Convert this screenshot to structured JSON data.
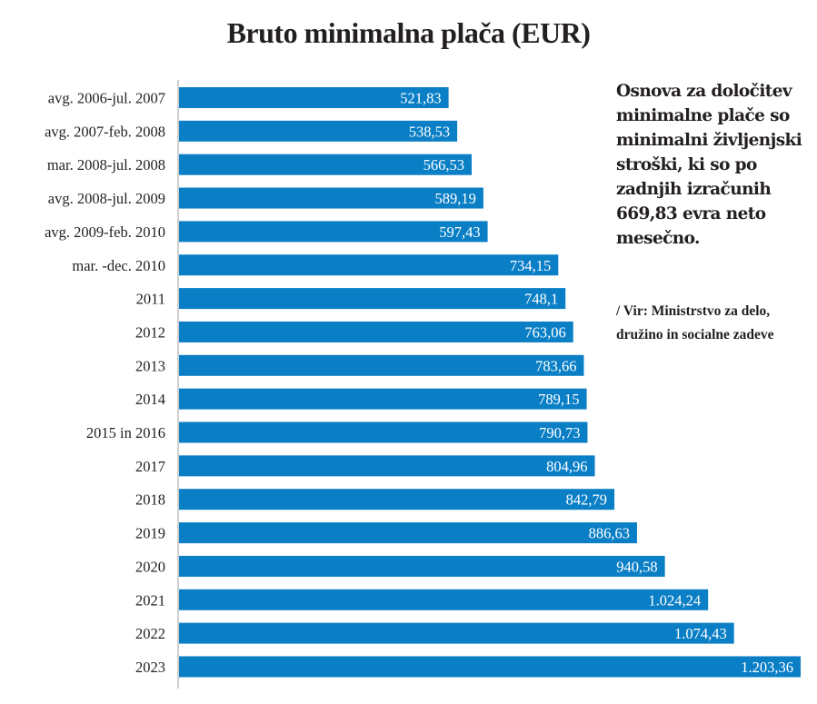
{
  "chart_data": {
    "type": "bar",
    "orientation": "horizontal",
    "title": "Bruto minimalna plača (EUR)",
    "xlabel": "",
    "ylabel": "",
    "xlim": [
      0,
      1203.36
    ],
    "grid": false,
    "bar_color": "#0a7fc6",
    "categories": [
      "avg. 2006-jul. 2007",
      "avg. 2007-feb. 2008",
      "mar. 2008-jul. 2008",
      "avg. 2008-jul. 2009",
      "avg. 2009-feb. 2010",
      "mar. -dec. 2010",
      "2011",
      "2012",
      "2013",
      "2014",
      "2015 in 2016",
      "2017",
      "2018",
      "2019",
      "2020",
      "2021",
      "2022",
      "2023"
    ],
    "values": [
      521.83,
      538.53,
      566.53,
      589.19,
      597.43,
      734.15,
      748.1,
      763.06,
      783.66,
      789.15,
      790.73,
      804.96,
      842.79,
      886.63,
      940.58,
      1024.24,
      1074.43,
      1203.36
    ],
    "value_labels": [
      "521,83",
      "538,53",
      "566,53",
      "589,19",
      "597,43",
      "734,15",
      "748,1",
      "763,06",
      "783,66",
      "789,15",
      "790,73",
      "804,96",
      "842,79",
      "886,63",
      "940,58",
      "1.024,24",
      "1.074,43",
      "1.203,36"
    ]
  },
  "annotation": {
    "note": "Osnova za določitev minimalne plače so minimalni življenjski stroški, ki so po zadnjih izračunih 669,83 evra neto mesečno.",
    "source": "/ Vir: Ministrstvo za delo, družino in socialne zadeve"
  }
}
